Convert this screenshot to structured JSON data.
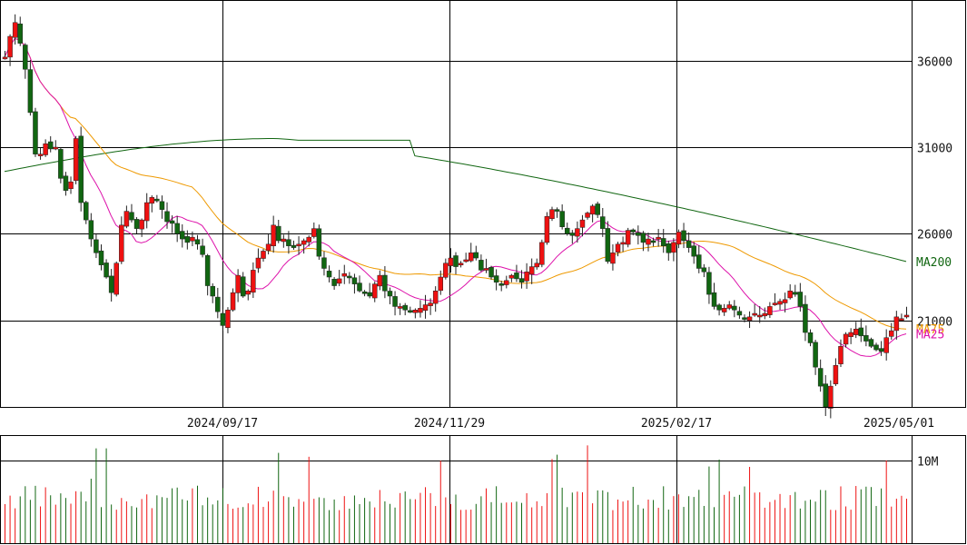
{
  "chart_data": {
    "type": "candlestick",
    "y_ticks": [
      21000,
      26000,
      31000,
      36000
    ],
    "y_tick_labels": [
      "21000",
      "26000",
      "31000",
      "36000"
    ],
    "ylim": [
      16000,
      39500
    ],
    "x_ticks": [
      "2024/09/17",
      "2024/11/29",
      "2025/02/17",
      "2025/05/01"
    ],
    "volume_tick": 10000000,
    "volume_tick_label": "10M",
    "volume_max": 13000000,
    "up_color": "#ee1111",
    "down_color": "#116611",
    "ma_labels": {
      "ma200": "MA200",
      "ma75": "MA75",
      "ma25": "MA25"
    },
    "ma_colors": {
      "ma200": "#116611",
      "ma75": "#ee9900",
      "ma25": "#dd11aa"
    },
    "closes": [
      36200,
      37400,
      38200,
      37000,
      35500,
      33000,
      30600,
      30600,
      31200,
      30900,
      31000,
      29200,
      28500,
      29000,
      31500,
      27800,
      26800,
      25700,
      24900,
      24200,
      23500,
      22600,
      24300,
      26500,
      27300,
      26800,
      26300,
      26800,
      27800,
      28100,
      27900,
      27400,
      26700,
      26600,
      26000,
      25700,
      25500,
      25800,
      25400,
      24800,
      23000,
      22400,
      21500,
      20700,
      21600,
      22600,
      23600,
      22400,
      22700,
      23900,
      24600,
      25000,
      25400,
      26500,
      25600,
      25700,
      25300,
      25200,
      25400,
      25600,
      25800,
      26300,
      24700,
      24000,
      23500,
      23000,
      23400,
      23700,
      23500,
      23100,
      22700,
      22600,
      22400,
      23100,
      23600,
      22700,
      22400,
      21800,
      21800,
      21600,
      21500,
      21600,
      21700,
      21900,
      22000,
      22700,
      23500,
      24300,
      24600,
      24100,
      24300,
      24500,
      24900,
      24600,
      23900,
      24000,
      23500,
      23200,
      23100,
      23300,
      23600,
      23400,
      23200,
      23800,
      24100,
      24300,
      25500,
      27000,
      27400,
      27300,
      26400,
      26000,
      25900,
      26300,
      26800,
      27200,
      27600,
      27100,
      26300,
      24400,
      24900,
      25400,
      25500,
      26200,
      26100,
      25900,
      25500,
      25700,
      25600,
      25800,
      25300,
      24900,
      25500,
      26100,
      25600,
      25200,
      24700,
      24000,
      23800,
      22500,
      21800,
      21600,
      21700,
      21900,
      21600,
      21300,
      21100,
      21200,
      21400,
      21300,
      21400,
      21800,
      22000,
      22100,
      22200,
      22700,
      22500,
      21800,
      20300,
      19700,
      18300,
      17200,
      16000,
      17200,
      18400,
      19500,
      20200,
      20300,
      20500,
      20100,
      19800,
      19500,
      19300,
      19200,
      20000,
      20400,
      21200,
      21100,
      21300
    ]
  }
}
